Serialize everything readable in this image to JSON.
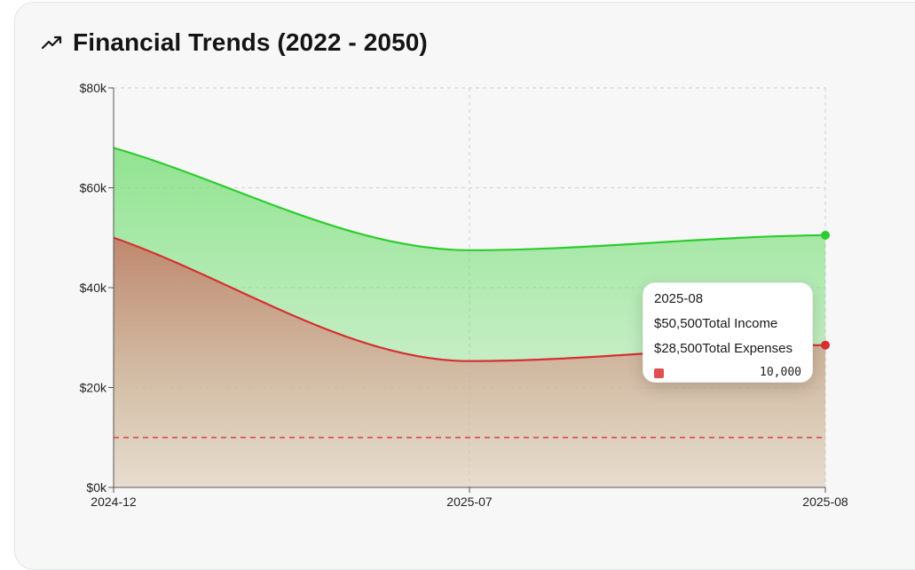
{
  "header": {
    "title": "Financial Trends (2022 - 2050)",
    "icon": "trending-up-icon"
  },
  "colors": {
    "income": "#2ecc2e",
    "income_fill": "#7fe07f",
    "expenses": "#d63030",
    "expenses_fill": "#c0826a",
    "reference": "#e05050",
    "grid": "#cfcfcf",
    "axis": "#555555"
  },
  "chart_data": {
    "type": "area",
    "title": "Financial Trends (2022 - 2050)",
    "categories": [
      "2024-12",
      "2025-07",
      "2025-08"
    ],
    "series": [
      {
        "name": "Total Income",
        "values": [
          68000,
          47500,
          50500
        ]
      },
      {
        "name": "Total Expenses",
        "values": [
          50000,
          25300,
          28500
        ]
      }
    ],
    "reference_line": {
      "value": 10000,
      "style": "dashed"
    },
    "ylim": [
      0,
      80000
    ],
    "y_ticks": [
      0,
      20000,
      40000,
      60000,
      80000
    ],
    "y_tick_labels": [
      "$0k",
      "$20k",
      "$40k",
      "$60k",
      "$80k"
    ],
    "grid": true,
    "xlabel": "",
    "ylabel": ""
  },
  "tooltip": {
    "title": "2025-08",
    "rows": [
      {
        "value": "$50,500",
        "label": "Total Income"
      },
      {
        "value": "$28,500",
        "label": "Total Expenses"
      }
    ],
    "reference_value": "10,000"
  }
}
